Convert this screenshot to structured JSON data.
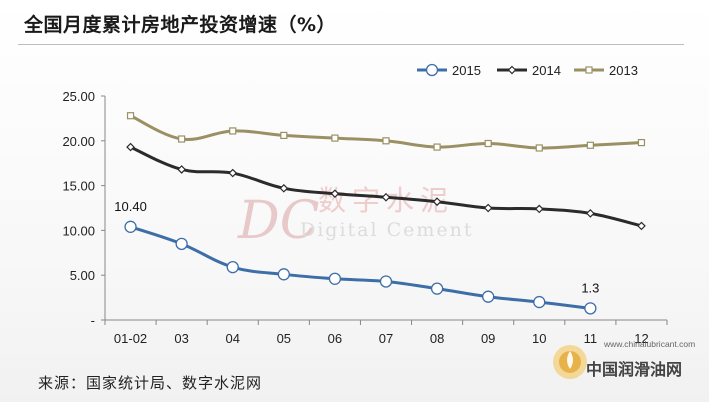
{
  "title": "全国月度累计房地产投资增速（%）",
  "source": "来源：国家统计局、数字水泥网",
  "watermark": {
    "cn": "数字水泥",
    "en": "Digital Cement",
    "mark": "DC"
  },
  "logo": {
    "url": "www.chinalubricant.com",
    "name": "中国润滑油网"
  },
  "colors": {
    "s2015": "#3d6ea8",
    "s2014": "#2b2b2b",
    "s2013": "#9a9064"
  },
  "chart_data": {
    "type": "line",
    "categories": [
      "01-02",
      "03",
      "04",
      "05",
      "06",
      "07",
      "08",
      "09",
      "10",
      "11",
      "12"
    ],
    "yticks": [
      "25.00",
      "20.00",
      "15.00",
      "10.00",
      "5.00",
      "-"
    ],
    "ylim": [
      0,
      25
    ],
    "legend_position": "top-right",
    "series": [
      {
        "name": "2015",
        "marker": "circle",
        "values": [
          10.4,
          8.5,
          5.9,
          5.1,
          4.6,
          4.3,
          3.5,
          2.6,
          2.0,
          1.3,
          null
        ]
      },
      {
        "name": "2014",
        "marker": "diamond",
        "values": [
          19.3,
          16.8,
          16.4,
          14.7,
          14.1,
          13.7,
          13.2,
          12.5,
          12.4,
          11.9,
          10.5
        ]
      },
      {
        "name": "2013",
        "marker": "square",
        "values": [
          22.8,
          20.2,
          21.1,
          20.6,
          20.3,
          20.0,
          19.3,
          19.7,
          19.2,
          19.5,
          19.8
        ]
      }
    ],
    "annotations": [
      {
        "series": "2015",
        "category": "01-02",
        "text": "10.40"
      },
      {
        "series": "2015",
        "category": "11",
        "text": "1.3"
      }
    ]
  }
}
